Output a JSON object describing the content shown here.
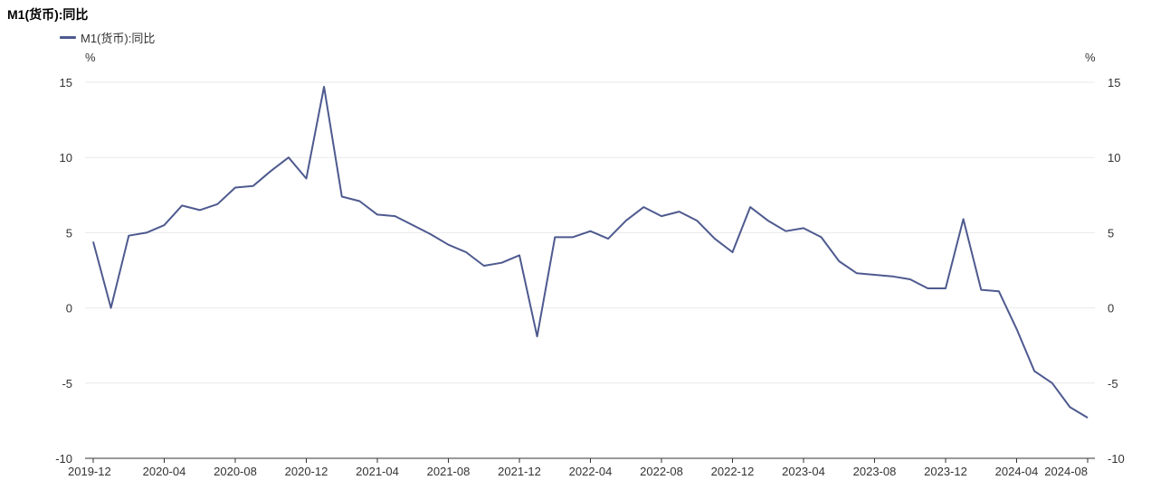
{
  "chart_data": {
    "type": "line",
    "title": "M1(货币):同比",
    "ylabel_left": "%",
    "ylabel_right": "%",
    "ylim": [
      -10,
      15
    ],
    "yticks": [
      -10,
      -5,
      0,
      5,
      10,
      15
    ],
    "xticks": [
      "2019-12",
      "2020-04",
      "2020-08",
      "2020-12",
      "2021-04",
      "2021-08",
      "2021-12",
      "2022-04",
      "2022-08",
      "2022-12",
      "2023-04",
      "2023-08",
      "2023-12",
      "2024-04",
      "2024-08"
    ],
    "grid": true,
    "legend_position": "top-left",
    "x": [
      "2019-12",
      "2020-01",
      "2020-02",
      "2020-03",
      "2020-04",
      "2020-05",
      "2020-06",
      "2020-07",
      "2020-08",
      "2020-09",
      "2020-10",
      "2020-11",
      "2020-12",
      "2021-01",
      "2021-02",
      "2021-03",
      "2021-04",
      "2021-05",
      "2021-06",
      "2021-07",
      "2021-08",
      "2021-09",
      "2021-10",
      "2021-11",
      "2021-12",
      "2022-01",
      "2022-02",
      "2022-03",
      "2022-04",
      "2022-05",
      "2022-06",
      "2022-07",
      "2022-08",
      "2022-09",
      "2022-10",
      "2022-11",
      "2022-12",
      "2023-01",
      "2023-02",
      "2023-03",
      "2023-04",
      "2023-05",
      "2023-06",
      "2023-07",
      "2023-08",
      "2023-09",
      "2023-10",
      "2023-11",
      "2023-12",
      "2024-01",
      "2024-02",
      "2024-03",
      "2024-04",
      "2024-05",
      "2024-06",
      "2024-07",
      "2024-08"
    ],
    "series": [
      {
        "name": "M1(货币):同比",
        "color": "#4e5a8f",
        "values": [
          4.4,
          0.0,
          4.8,
          5.0,
          5.5,
          6.8,
          6.5,
          6.9,
          8.0,
          8.1,
          9.1,
          10.0,
          8.6,
          14.7,
          7.4,
          7.1,
          6.2,
          6.1,
          5.5,
          4.9,
          4.2,
          3.7,
          2.8,
          3.0,
          3.5,
          -1.9,
          4.7,
          4.7,
          5.1,
          4.6,
          5.8,
          6.7,
          6.1,
          6.4,
          5.8,
          4.6,
          3.7,
          6.7,
          5.8,
          5.1,
          5.3,
          4.7,
          3.1,
          2.3,
          2.2,
          2.1,
          1.9,
          1.3,
          1.3,
          5.9,
          1.2,
          1.1,
          -1.4,
          -4.2,
          -5.0,
          -6.6,
          -7.3
        ]
      }
    ]
  }
}
